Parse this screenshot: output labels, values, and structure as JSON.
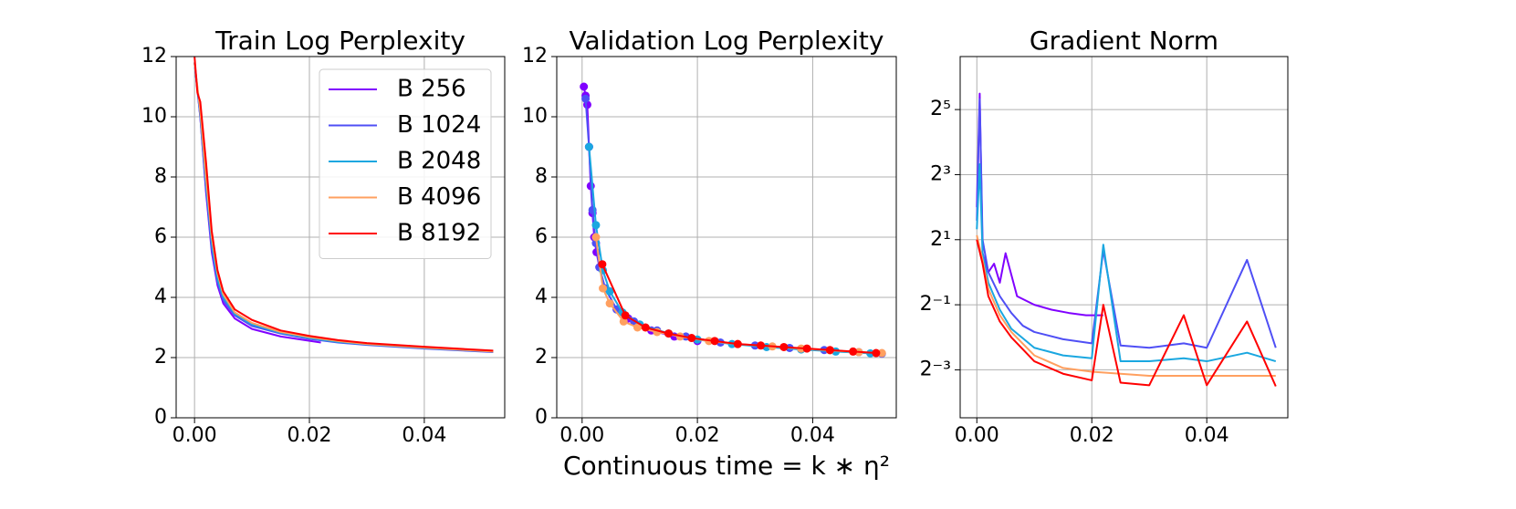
{
  "chart_data": [
    {
      "type": "line",
      "title": "Train Log Perplexity",
      "grid": true,
      "legend": "upper right",
      "xlim": [
        -0.0032,
        0.054
      ],
      "ylim": [
        0,
        12
      ],
      "xticks": [
        {
          "value": 0,
          "label": "0.00"
        },
        {
          "value": 0.02,
          "label": "0.02"
        },
        {
          "value": 0.04,
          "label": "0.04"
        }
      ],
      "yticks": [
        0,
        2,
        4,
        6,
        8,
        10,
        12
      ],
      "series": [
        {
          "name": "B 256",
          "color": "#8000ff",
          "x": [
            0,
            0.001,
            0.002,
            0.003,
            0.004,
            0.005,
            0.007,
            0.01,
            0.015,
            0.022
          ],
          "values": [
            11.8,
            10,
            7.5,
            5.5,
            4.4,
            3.8,
            3.3,
            2.95,
            2.7,
            2.5
          ]
        },
        {
          "name": "B 1024",
          "color": "#4f4ff5",
          "x": [
            0,
            0.001,
            0.002,
            0.003,
            0.004,
            0.005,
            0.007,
            0.01,
            0.015,
            0.02,
            0.025,
            0.03,
            0.04,
            0.052
          ],
          "values": [
            11.8,
            10,
            7.6,
            5.6,
            4.5,
            3.9,
            3.4,
            3.05,
            2.8,
            2.62,
            2.5,
            2.42,
            2.3,
            2.18
          ]
        },
        {
          "name": "B 2048",
          "color": "#1aa7e0",
          "x": [
            0,
            0.001,
            0.002,
            0.003,
            0.004,
            0.005,
            0.007,
            0.01,
            0.015,
            0.02,
            0.025,
            0.03,
            0.04,
            0.052
          ],
          "values": [
            11.8,
            10.1,
            7.8,
            5.8,
            4.6,
            4,
            3.45,
            3.1,
            2.82,
            2.65,
            2.52,
            2.44,
            2.32,
            2.2
          ]
        },
        {
          "name": "B 4096",
          "color": "#ffa060",
          "x": [
            0,
            0.001,
            0.002,
            0.003,
            0.004,
            0.005,
            0.007,
            0.01,
            0.015,
            0.02,
            0.025,
            0.03,
            0.04,
            0.052
          ],
          "values": [
            11.8,
            10.2,
            8,
            6,
            4.8,
            4.1,
            3.5,
            3.15,
            2.85,
            2.68,
            2.55,
            2.45,
            2.33,
            2.2
          ]
        },
        {
          "name": "B 8192",
          "color": "#ff0000",
          "x": [
            0,
            0.0005,
            0.001,
            0.002,
            0.003,
            0.004,
            0.005,
            0.007,
            0.01,
            0.015,
            0.02,
            0.025,
            0.03,
            0.04,
            0.052
          ],
          "values": [
            12,
            10.8,
            10.5,
            8.5,
            6.2,
            4.9,
            4.2,
            3.6,
            3.25,
            2.9,
            2.72,
            2.58,
            2.48,
            2.36,
            2.23
          ]
        }
      ]
    },
    {
      "type": "line",
      "markers": true,
      "title": "Validation Log Perplexity",
      "x_label": "Continuous time = k ∗ η²",
      "grid": true,
      "xlim": [
        -0.0044,
        0.0545
      ],
      "ylim": [
        0,
        12
      ],
      "xticks": [
        {
          "value": 0,
          "label": "0.00"
        },
        {
          "value": 0.02,
          "label": "0.02"
        },
        {
          "value": 0.04,
          "label": "0.04"
        }
      ],
      "yticks": [
        0,
        2,
        4,
        6,
        8,
        10,
        12
      ],
      "series": [
        {
          "color": "#8000ff",
          "x": [
            0.0003,
            0.0006,
            0.0009,
            0.0012,
            0.0015,
            0.0018,
            0.0021,
            0.0025,
            0.003,
            0.004,
            0.006,
            0.008,
            0.012,
            0.016,
            0.02
          ],
          "values": [
            11,
            10.7,
            10.4,
            9,
            7.7,
            6.8,
            6,
            5.5,
            5,
            4.3,
            3.6,
            3.3,
            2.9,
            2.7,
            2.55
          ]
        },
        {
          "color": "#4f4ff5",
          "x": [
            0.0006,
            0.0012,
            0.0018,
            0.0024,
            0.003,
            0.004,
            0.006,
            0.009,
            0.013,
            0.018,
            0.024,
            0.03,
            0.036,
            0.042,
            0.048,
            0.052
          ],
          "values": [
            10.6,
            9,
            6.9,
            5.8,
            5,
            4.3,
            3.6,
            3.2,
            2.9,
            2.7,
            2.5,
            2.4,
            2.32,
            2.25,
            2.18,
            2.13
          ]
        },
        {
          "color": "#1aa7e0",
          "x": [
            0.0012,
            0.0024,
            0.0036,
            0.0048,
            0.007,
            0.01,
            0.015,
            0.02,
            0.026,
            0.032,
            0.038,
            0.044,
            0.05
          ],
          "values": [
            9,
            6.4,
            4.9,
            4.2,
            3.5,
            3.1,
            2.8,
            2.6,
            2.45,
            2.35,
            2.27,
            2.2,
            2.14
          ]
        },
        {
          "color": "#ffa060",
          "x": [
            0.0024,
            0.0036,
            0.0048,
            0.0072,
            0.0096,
            0.013,
            0.017,
            0.022,
            0.027,
            0.033,
            0.038,
            0.043,
            0.048,
            0.052
          ],
          "values": [
            6,
            4.3,
            3.8,
            3.2,
            3,
            2.85,
            2.7,
            2.55,
            2.45,
            2.37,
            2.3,
            2.24,
            2.18,
            2.15
          ]
        },
        {
          "color": "#ff0000",
          "x": [
            0.0035,
            0.0075,
            0.011,
            0.015,
            0.019,
            0.023,
            0.027,
            0.031,
            0.035,
            0.039,
            0.043,
            0.047,
            0.051
          ],
          "values": [
            5.1,
            3.4,
            3.0,
            2.8,
            2.65,
            2.55,
            2.45,
            2.4,
            2.35,
            2.3,
            2.25,
            2.2,
            2.15
          ]
        }
      ]
    },
    {
      "type": "line",
      "title": "Gradient Norm",
      "grid": true,
      "log_scale": "y",
      "xlim": [
        -0.0029,
        0.0541
      ],
      "ylim": [
        0.045,
        99
      ],
      "xticks": [
        {
          "value": 0,
          "label": "0.00"
        },
        {
          "value": 0.02,
          "label": "0.02"
        },
        {
          "value": 0.04,
          "label": "0.04"
        }
      ],
      "yticks": [
        {
          "value": 0.125,
          "label": "2⁻³"
        },
        {
          "value": 0.5,
          "label": "2⁻¹"
        },
        {
          "value": 2,
          "label": "2¹"
        },
        {
          "value": 8,
          "label": "2³"
        },
        {
          "value": 32,
          "label": "2⁵"
        }
      ],
      "series": [
        {
          "color": "#8000ff",
          "x": [
            0,
            0.0005,
            0.001,
            0.002,
            0.003,
            0.004,
            0.005,
            0.007,
            0.01,
            0.013,
            0.016,
            0.019,
            0.022
          ],
          "values": [
            4,
            45,
            1.5,
            1.0,
            1.2,
            0.8,
            1.5,
            0.6,
            0.5,
            0.45,
            0.42,
            0.4,
            0.4
          ]
        },
        {
          "color": "#4f4ff5",
          "x": [
            0,
            0.0005,
            0.001,
            0.002,
            0.004,
            0.006,
            0.008,
            0.01,
            0.015,
            0.02,
            0.022,
            0.025,
            0.03,
            0.036,
            0.04,
            0.047,
            0.052
          ],
          "values": [
            3,
            40,
            2,
            1,
            0.6,
            0.42,
            0.32,
            0.28,
            0.24,
            0.22,
            1.6,
            0.21,
            0.2,
            0.22,
            0.2,
            1.3,
            0.2
          ]
        },
        {
          "color": "#1aa7e0",
          "x": [
            0,
            0.0005,
            0.001,
            0.002,
            0.004,
            0.006,
            0.01,
            0.015,
            0.02,
            0.022,
            0.025,
            0.03,
            0.036,
            0.04,
            0.047,
            0.052
          ],
          "values": [
            2.5,
            10,
            1.5,
            0.8,
            0.45,
            0.3,
            0.2,
            0.17,
            0.16,
            1.8,
            0.15,
            0.15,
            0.16,
            0.15,
            0.18,
            0.15
          ]
        },
        {
          "color": "#ffa060",
          "x": [
            0,
            0.001,
            0.002,
            0.004,
            0.006,
            0.01,
            0.015,
            0.02,
            0.025,
            0.03,
            0.04,
            0.052
          ],
          "values": [
            2.2,
            1.3,
            0.7,
            0.4,
            0.28,
            0.17,
            0.13,
            0.12,
            0.115,
            0.11,
            0.11,
            0.11
          ]
        },
        {
          "color": "#ff0000",
          "x": [
            0,
            0.001,
            0.002,
            0.004,
            0.006,
            0.01,
            0.015,
            0.02,
            0.022,
            0.025,
            0.03,
            0.036,
            0.04,
            0.047,
            0.052
          ],
          "values": [
            2,
            1.2,
            0.6,
            0.35,
            0.25,
            0.15,
            0.115,
            0.1,
            0.5,
            0.095,
            0.09,
            0.4,
            0.09,
            0.35,
            0.088
          ]
        }
      ]
    }
  ]
}
